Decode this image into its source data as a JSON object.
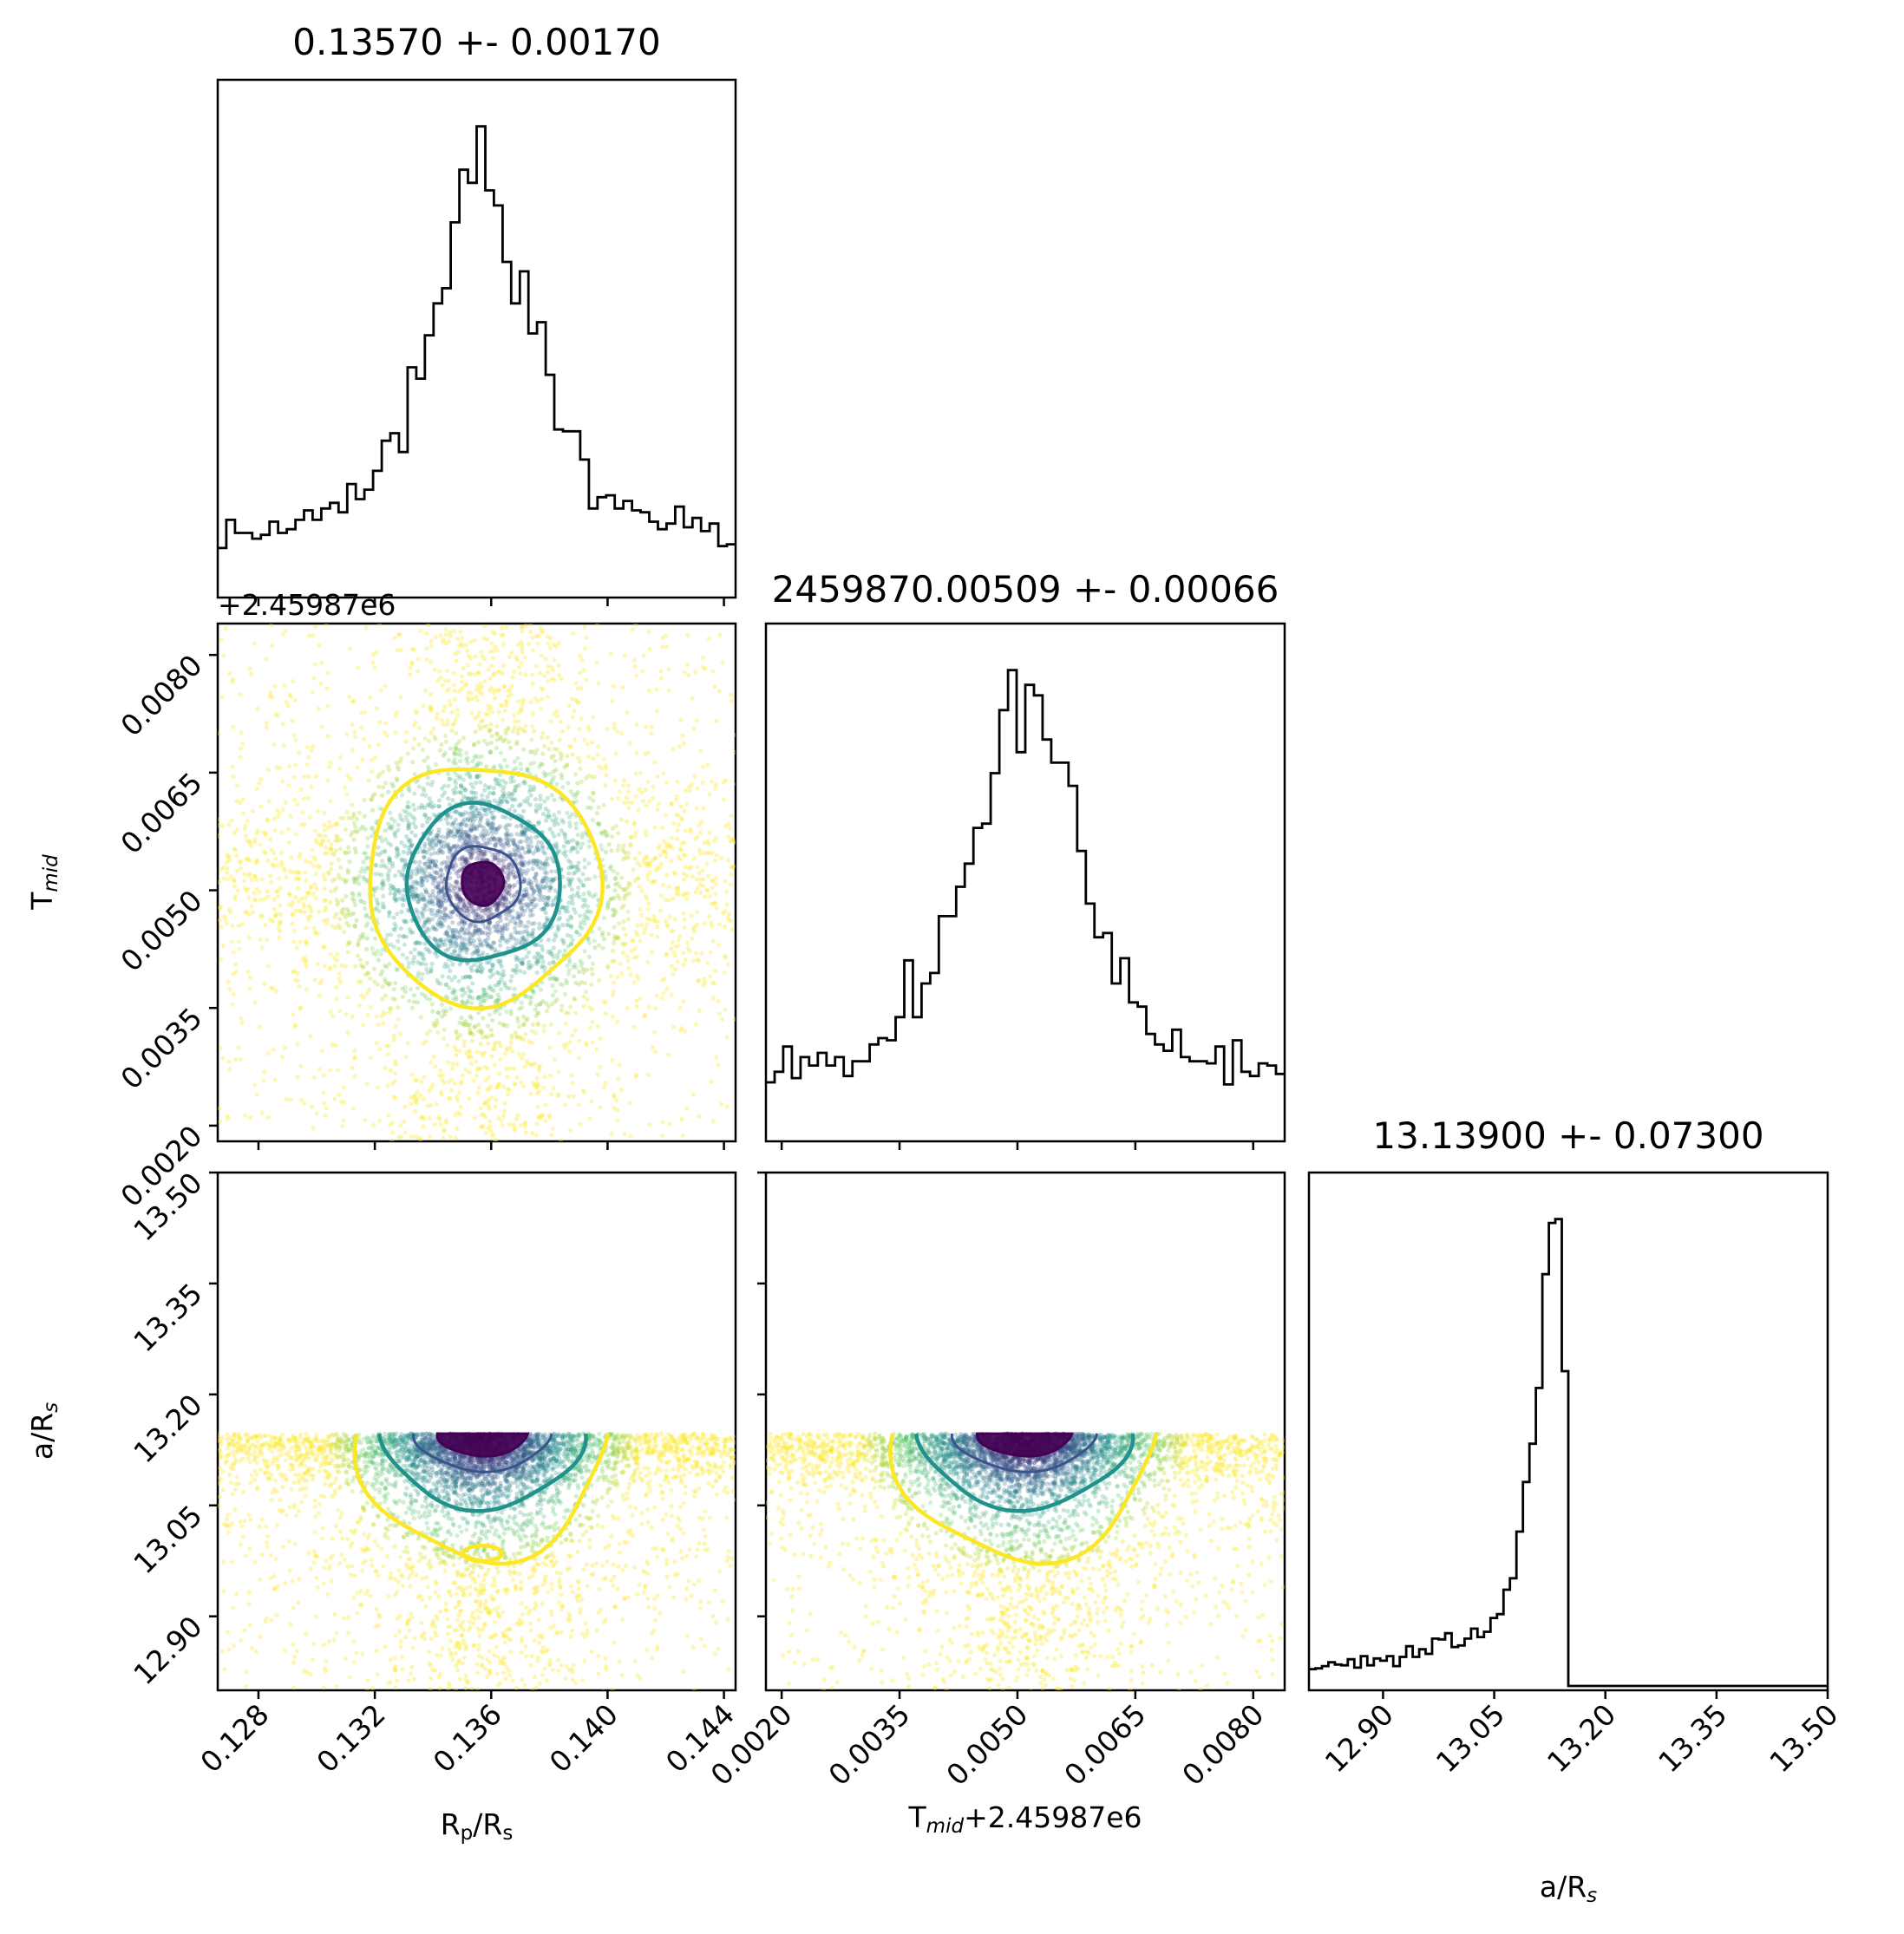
{
  "chart_data": {
    "type": "corner",
    "parameters": [
      {
        "key": "rp",
        "title": "0.13570 +- 0.00170",
        "label": "R_p/R_s",
        "label_base": "R",
        "label_sub": "p",
        "label_rest": "/R",
        "label_sub2": "s",
        "label_suffix": "",
        "range": [
          0.1266,
          0.1444
        ],
        "ticks": [
          0.128,
          0.132,
          0.136,
          0.14,
          0.144
        ],
        "tick_labels": [
          "0.128",
          "0.132",
          "0.136",
          "0.140",
          "0.144"
        ],
        "median": 0.1357,
        "sigma": 0.0017,
        "offset": ""
      },
      {
        "key": "tmid",
        "title": "2459870.00509 +- 0.00066",
        "label": "T_mid",
        "label_base": "T",
        "label_sub": "mid",
        "label_rest": "",
        "label_sub2": "",
        "label_suffix": "+2.45987e6",
        "range": [
          0.0018,
          0.0084
        ],
        "ticks": [
          0.002,
          0.0035,
          0.005,
          0.0065,
          0.008
        ],
        "tick_labels": [
          "0.0020",
          "0.0035",
          "0.0050",
          "0.0065",
          "0.0080"
        ],
        "median": 0.00509,
        "sigma": 0.00066,
        "offset": "+2.45987e6"
      },
      {
        "key": "ars",
        "title": "13.13900 +- 0.07300",
        "label": "a/R_s",
        "label_base": "a/R",
        "label_sub": "s",
        "label_rest": "",
        "label_sub2": "",
        "label_suffix": "",
        "range": [
          12.8,
          13.5
        ],
        "ticks": [
          12.9,
          13.05,
          13.2,
          13.35,
          13.5
        ],
        "tick_labels": [
          "12.90",
          "13.05",
          "13.20",
          "13.35",
          "13.50"
        ],
        "median": 13.139,
        "sigma": 0.073,
        "upper_bound": 13.147,
        "offset": ""
      }
    ],
    "contour_colors": [
      "#440154",
      "#21918c",
      "#fde725"
    ],
    "scatter_colormap": "viridis",
    "histogram_style": "step",
    "grid": false
  }
}
